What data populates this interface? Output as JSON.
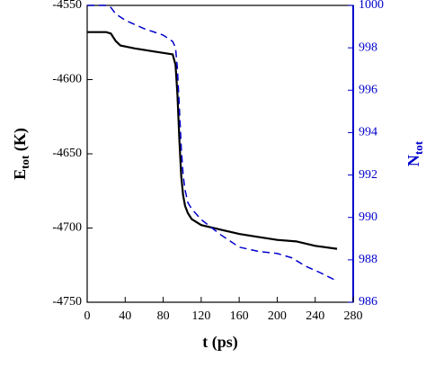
{
  "chart_data": {
    "type": "line",
    "xlabel": "t (ps)",
    "ylabel": [
      "E",
      "tot",
      " (K)"
    ],
    "y2label": [
      "N",
      "tot"
    ],
    "xlim": [
      0,
      280
    ],
    "xticks": [
      0,
      40,
      80,
      120,
      160,
      200,
      240,
      280
    ],
    "ylim": [
      -4750,
      -4550
    ],
    "yticks": [
      -4750,
      -4700,
      -4650,
      -4600,
      -4550
    ],
    "y2lim": [
      986,
      1000
    ],
    "y2ticks": [
      986,
      988,
      990,
      992,
      994,
      996,
      998,
      1000
    ],
    "y2color": "#0000cc",
    "series": [
      {
        "color": "#000000",
        "dash": false,
        "x": [
          0,
          10,
          20,
          25,
          30,
          35,
          50,
          70,
          90,
          93,
          95,
          97,
          99,
          101,
          103,
          106,
          110,
          120,
          140,
          160,
          180,
          200,
          220,
          240,
          263
        ],
        "values": [
          -4568,
          -4568,
          -4568,
          -4569,
          -4574,
          -4577,
          -4579,
          -4581,
          -4583,
          -4590,
          -4610,
          -4640,
          -4665,
          -4678,
          -4685,
          -4690,
          -4694,
          -4698,
          -4701,
          -4704,
          -4706,
          -4708,
          -4709,
          -4712,
          -4714
        ]
      },
      {
        "color": "#0000cc",
        "dash": true,
        "axis": "y2",
        "x": [
          0,
          10,
          20,
          25,
          30,
          40,
          60,
          80,
          90,
          93,
          95,
          97,
          99,
          101,
          103,
          106,
          110,
          120,
          140,
          160,
          180,
          200,
          215,
          230,
          245,
          263
        ],
        "values": [
          1000,
          1000,
          1000,
          999.9,
          999.6,
          999.3,
          998.9,
          998.6,
          998.3,
          998.0,
          997.0,
          995.2,
          993.3,
          992.0,
          991.3,
          990.7,
          990.4,
          989.9,
          989.2,
          988.6,
          988.4,
          988.3,
          988.1,
          987.7,
          987.4,
          987.0
        ]
      }
    ]
  }
}
